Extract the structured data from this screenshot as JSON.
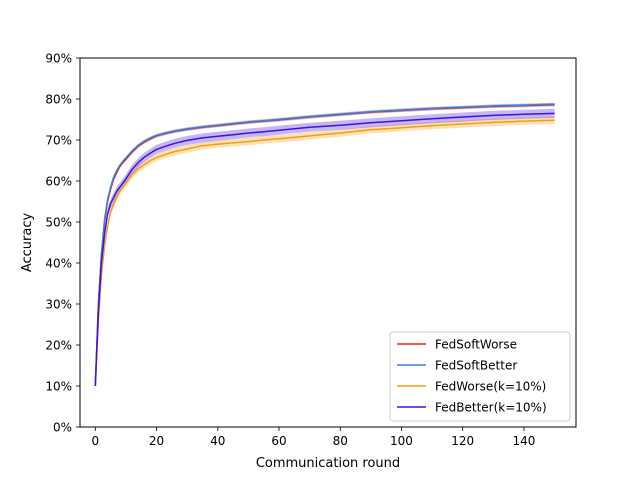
{
  "chart_data": {
    "type": "line",
    "title": "",
    "xlabel": "Communication round",
    "ylabel": "Accuracy",
    "xlim": [
      -5,
      157
    ],
    "ylim": [
      0,
      90
    ],
    "xticks": [
      0,
      20,
      40,
      60,
      80,
      100,
      120,
      140
    ],
    "xtick_labels": [
      "0",
      "20",
      "40",
      "60",
      "80",
      "100",
      "120",
      "140"
    ],
    "yticks": [
      0,
      10,
      20,
      30,
      40,
      50,
      60,
      70,
      80,
      90
    ],
    "ytick_labels": [
      "0%",
      "10%",
      "20%",
      "30%",
      "40%",
      "50%",
      "60%",
      "70%",
      "80%",
      "90%"
    ],
    "grid": false,
    "legend_position": "lower-right",
    "x": [
      0,
      1,
      2,
      3,
      4,
      5,
      6,
      7,
      8,
      9,
      10,
      12,
      14,
      16,
      18,
      20,
      23,
      26,
      30,
      35,
      40,
      45,
      50,
      55,
      60,
      70,
      80,
      90,
      100,
      110,
      120,
      130,
      140,
      150
    ],
    "series": [
      {
        "name": "FedSoftWorse",
        "color": "#e8221e",
        "values": [
          10,
          30,
          42,
          50,
          55,
          58,
          60.5,
          62,
          63.5,
          64.5,
          65.3,
          67,
          68.5,
          69.5,
          70.3,
          71,
          71.6,
          72.1,
          72.6,
          73.1,
          73.5,
          73.9,
          74.3,
          74.6,
          74.9,
          75.6,
          76.2,
          76.8,
          77.2,
          77.6,
          77.9,
          78.2,
          78.4,
          78.6
        ],
        "band": 0.4
      },
      {
        "name": "FedSoftBetter",
        "color": "#3b7ddd",
        "values": [
          10,
          30,
          42,
          50.5,
          55.5,
          58.5,
          61,
          62.5,
          63.8,
          64.8,
          65.6,
          67.3,
          68.7,
          69.7,
          70.5,
          71.1,
          71.7,
          72.2,
          72.7,
          73.2,
          73.6,
          74,
          74.4,
          74.7,
          75,
          75.7,
          76.3,
          76.9,
          77.3,
          77.7,
          78,
          78.3,
          78.5,
          78.7
        ],
        "band": 0.4
      },
      {
        "name": "FedWorse(k=10%)",
        "color": "#f59d12",
        "values": [
          10,
          26,
          37,
          44,
          49,
          52.5,
          54.5,
          56,
          57.5,
          58.5,
          59.5,
          61.5,
          63,
          64,
          65,
          65.7,
          66.5,
          67.2,
          67.8,
          68.6,
          69,
          69.3,
          69.6,
          70,
          70.3,
          71,
          71.7,
          72.5,
          73,
          73.5,
          73.9,
          74.3,
          74.6,
          74.8
        ],
        "band": 0.9
      },
      {
        "name": "FedBetter(k=10%)",
        "color": "#3f10e0",
        "values": [
          10,
          28,
          40,
          47,
          52,
          54.5,
          56,
          57.5,
          58.5,
          59.5,
          60.5,
          62.8,
          64.5,
          65.8,
          66.8,
          67.7,
          68.5,
          69.2,
          69.9,
          70.5,
          70.9,
          71.3,
          71.7,
          72,
          72.4,
          73.1,
          73.6,
          74.2,
          74.7,
          75.2,
          75.6,
          76,
          76.3,
          76.5
        ],
        "band": 1.1
      }
    ]
  }
}
